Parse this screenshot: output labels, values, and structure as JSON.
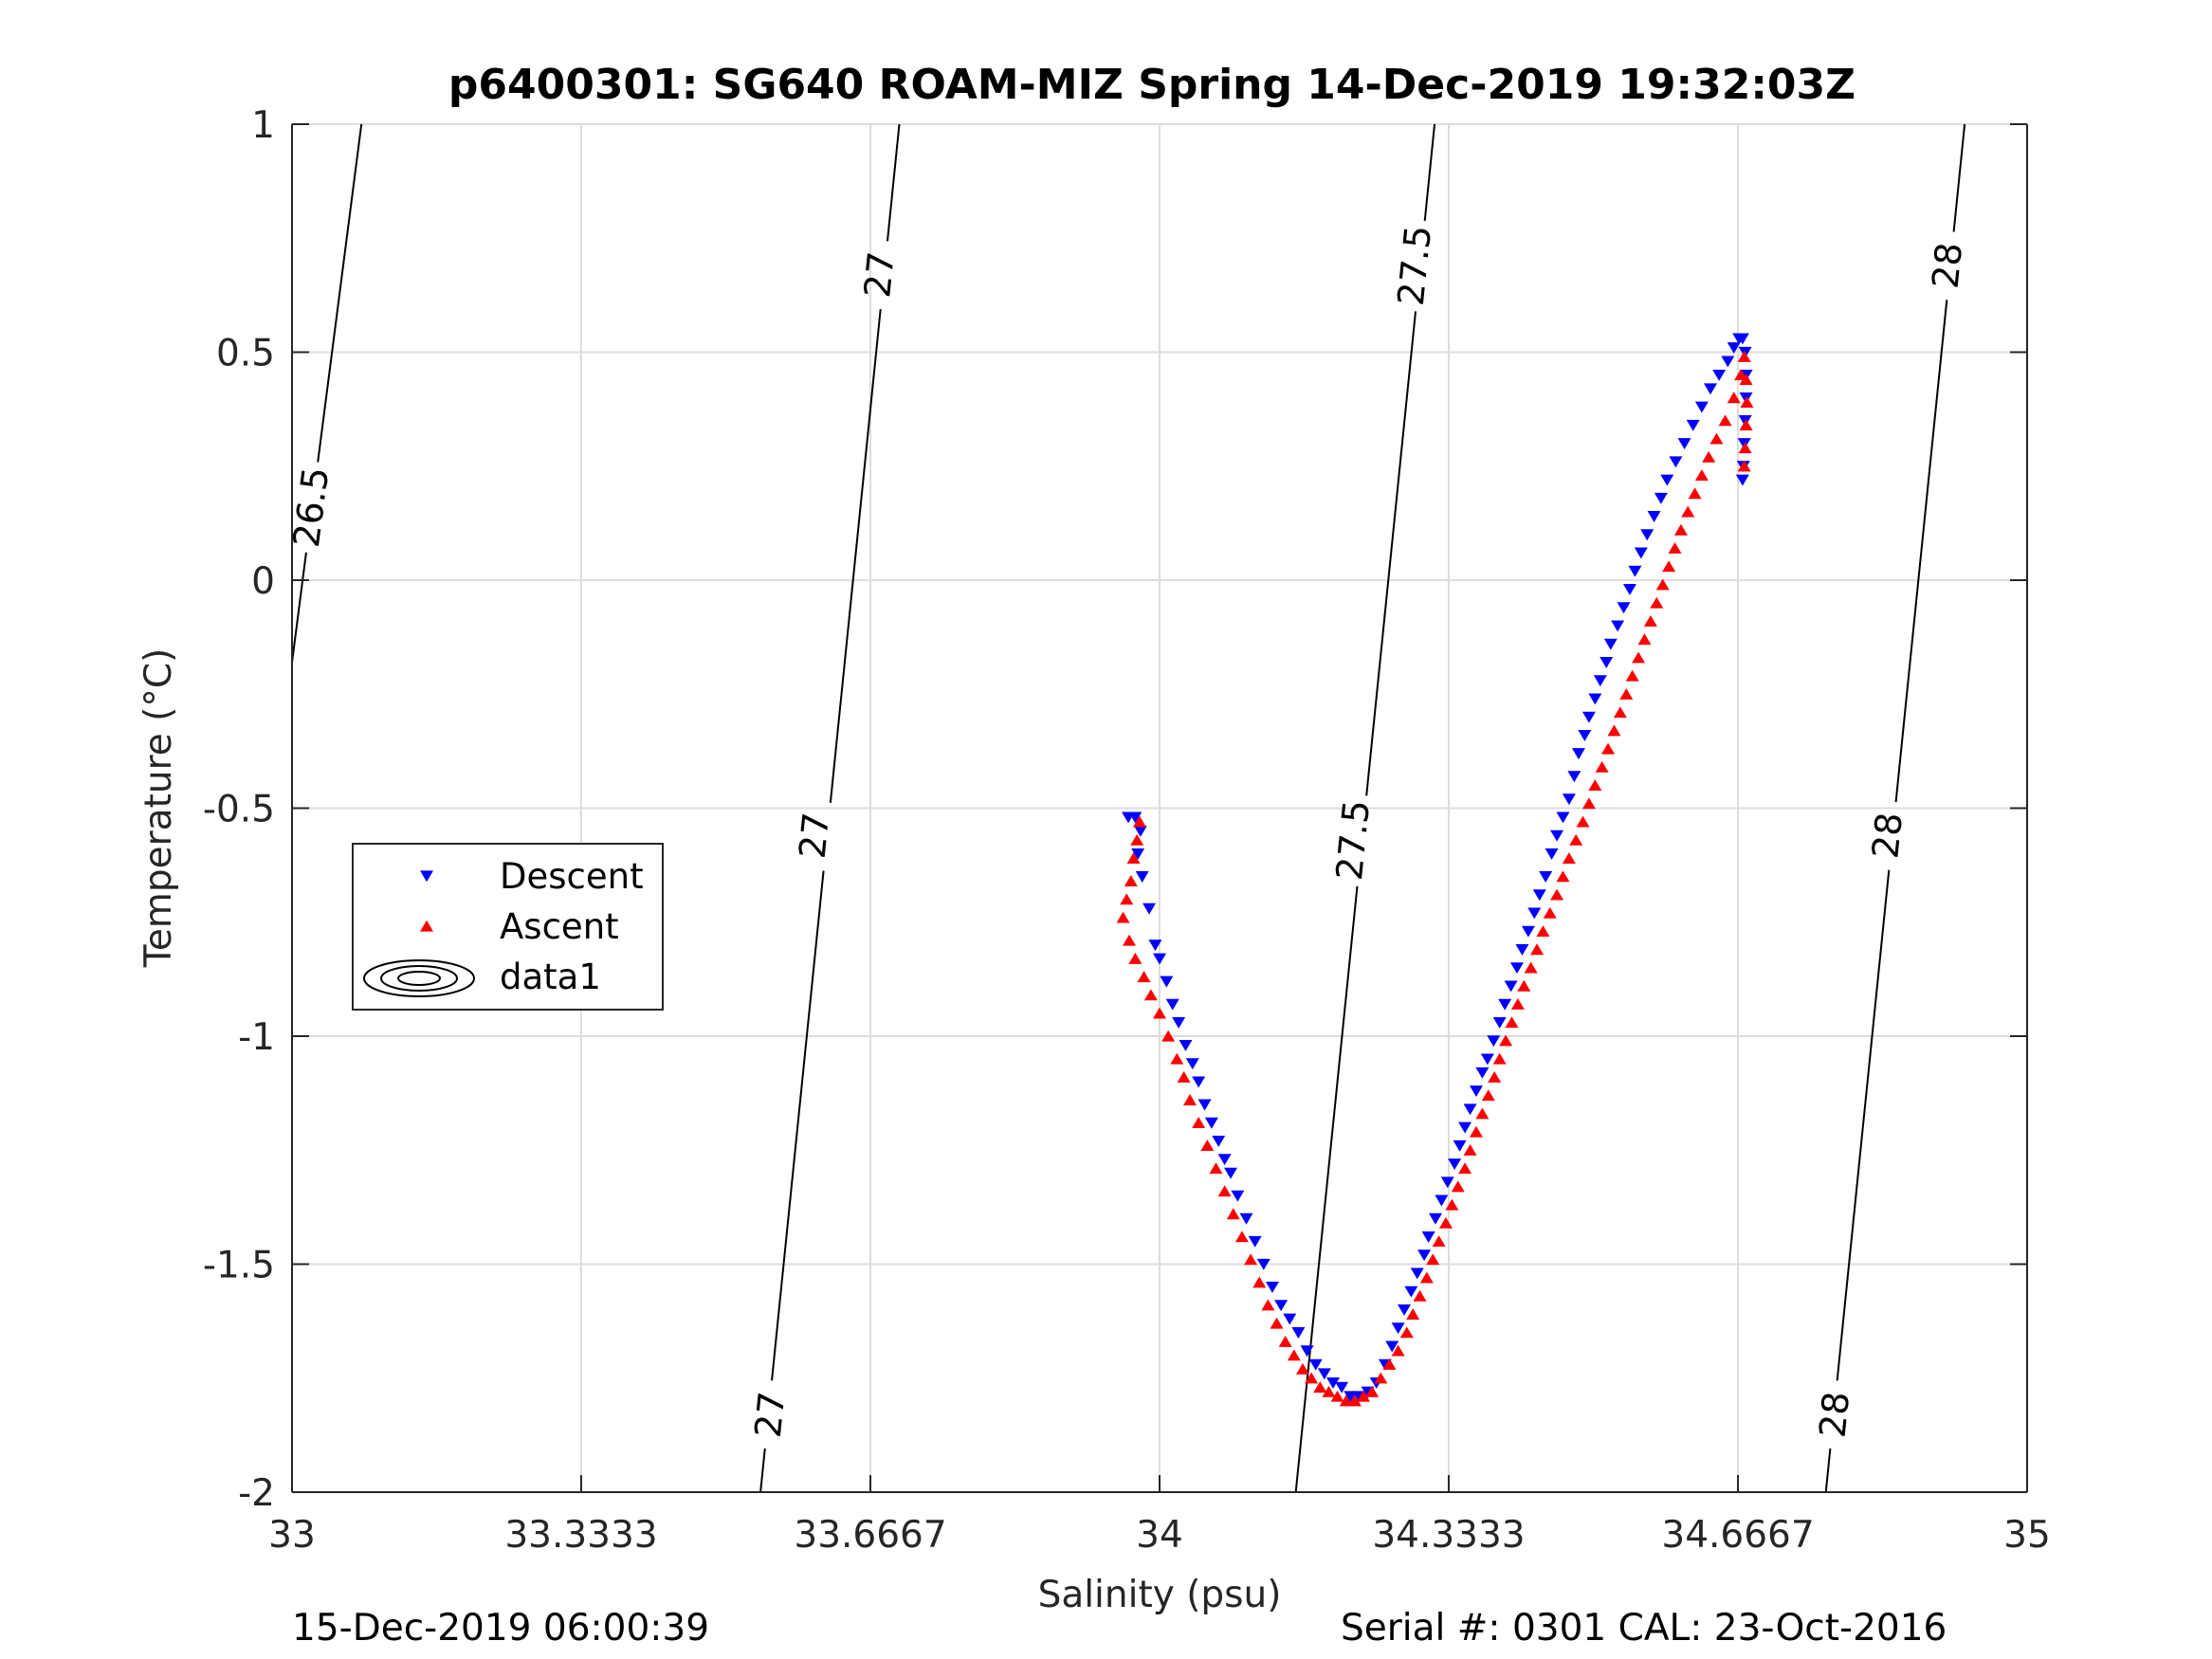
{
  "chart_data": {
    "type": "scatter",
    "title": "p6400301: SG640 ROAM-MIZ Spring 14-Dec-2019 19:32:03Z",
    "xlabel": "Salinity (psu)",
    "ylabel": "Temperature (°C)",
    "xlim": [
      33,
      35
    ],
    "ylim": [
      -2,
      1
    ],
    "xticks": [
      33,
      33.3333,
      33.6667,
      34,
      34.3333,
      34.6667,
      35
    ],
    "xtick_labels": [
      "33",
      "33.3333",
      "33.6667",
      "34",
      "34.3333",
      "34.6667",
      "35"
    ],
    "yticks": [
      -2,
      -1.5,
      -1,
      -0.5,
      0,
      0.5,
      1
    ],
    "ytick_labels": [
      "-2",
      "-1.5",
      "-1",
      "-0.5",
      "0",
      "0.5",
      "1"
    ],
    "grid": true,
    "legend_position": "left-middle",
    "contours": [
      {
        "level": "26.5",
        "points": [
          [
            33.0,
            -0.18
          ],
          [
            33.08,
            1.0
          ]
        ],
        "label_at": [
          [
            33.022,
            0.16
          ]
        ]
      },
      {
        "level": "27",
        "points": [
          [
            33.54,
            -2.0
          ],
          [
            33.7,
            1.0
          ]
        ],
        "label_at": [
          [
            33.551,
            -1.83
          ],
          [
            33.602,
            -0.56
          ],
          [
            33.677,
            0.67
          ]
        ]
      },
      {
        "level": "27.5",
        "points": [
          [
            34.157,
            -2.0
          ],
          [
            34.317,
            1.0
          ]
        ],
        "label_at": [
          [
            34.223,
            -0.57
          ],
          [
            34.294,
            0.69
          ]
        ]
      },
      {
        "level": "28",
        "points": [
          [
            34.768,
            -2.0
          ],
          [
            34.928,
            1.0
          ]
        ],
        "label_at": [
          [
            34.778,
            -1.83
          ],
          [
            34.839,
            -0.56
          ],
          [
            34.908,
            0.69
          ]
        ]
      }
    ],
    "series": [
      {
        "name": "Descent",
        "color": "#0000ff",
        "marker": "triangle-down",
        "points": [
          [
            33.964,
            -0.52
          ],
          [
            33.972,
            -0.52
          ],
          [
            33.978,
            -0.55
          ],
          [
            33.975,
            -0.6
          ],
          [
            33.98,
            -0.65
          ],
          [
            33.988,
            -0.72
          ],
          [
            33.995,
            -0.8
          ],
          [
            34.0,
            -0.83
          ],
          [
            34.008,
            -0.88
          ],
          [
            34.015,
            -0.93
          ],
          [
            34.022,
            -0.97
          ],
          [
            34.03,
            -1.02
          ],
          [
            34.038,
            -1.06
          ],
          [
            34.045,
            -1.1
          ],
          [
            34.052,
            -1.15
          ],
          [
            34.06,
            -1.19
          ],
          [
            34.068,
            -1.23
          ],
          [
            34.075,
            -1.27
          ],
          [
            34.082,
            -1.3
          ],
          [
            34.09,
            -1.35
          ],
          [
            34.1,
            -1.4
          ],
          [
            34.11,
            -1.45
          ],
          [
            34.12,
            -1.5
          ],
          [
            34.13,
            -1.55
          ],
          [
            34.14,
            -1.59
          ],
          [
            34.15,
            -1.62
          ],
          [
            34.16,
            -1.65
          ],
          [
            34.17,
            -1.69
          ],
          [
            34.18,
            -1.72
          ],
          [
            34.19,
            -1.74
          ],
          [
            34.2,
            -1.76
          ],
          [
            34.21,
            -1.77
          ],
          [
            34.22,
            -1.79
          ],
          [
            34.23,
            -1.79
          ],
          [
            34.24,
            -1.78
          ],
          [
            34.25,
            -1.76
          ],
          [
            34.26,
            -1.72
          ],
          [
            34.268,
            -1.68
          ],
          [
            34.275,
            -1.64
          ],
          [
            34.282,
            -1.6
          ],
          [
            34.29,
            -1.56
          ],
          [
            34.297,
            -1.52
          ],
          [
            34.305,
            -1.48
          ],
          [
            34.31,
            -1.44
          ],
          [
            34.318,
            -1.4
          ],
          [
            34.325,
            -1.36
          ],
          [
            34.332,
            -1.32
          ],
          [
            34.34,
            -1.28
          ],
          [
            34.346,
            -1.24
          ],
          [
            34.352,
            -1.2
          ],
          [
            34.358,
            -1.16
          ],
          [
            34.365,
            -1.12
          ],
          [
            34.372,
            -1.08
          ],
          [
            34.378,
            -1.05
          ],
          [
            34.385,
            -1.01
          ],
          [
            34.392,
            -0.97
          ],
          [
            34.398,
            -0.93
          ],
          [
            34.405,
            -0.89
          ],
          [
            34.412,
            -0.85
          ],
          [
            34.418,
            -0.81
          ],
          [
            34.425,
            -0.77
          ],
          [
            34.432,
            -0.73
          ],
          [
            34.438,
            -0.69
          ],
          [
            34.445,
            -0.65
          ],
          [
            34.452,
            -0.6
          ],
          [
            34.458,
            -0.56
          ],
          [
            34.465,
            -0.52
          ],
          [
            34.472,
            -0.48
          ],
          [
            34.478,
            -0.43
          ],
          [
            34.483,
            -0.38
          ],
          [
            34.49,
            -0.34
          ],
          [
            34.495,
            -0.3
          ],
          [
            34.502,
            -0.26
          ],
          [
            34.508,
            -0.22
          ],
          [
            34.515,
            -0.18
          ],
          [
            34.52,
            -0.14
          ],
          [
            34.528,
            -0.1
          ],
          [
            34.535,
            -0.06
          ],
          [
            34.542,
            -0.02
          ],
          [
            34.548,
            0.02
          ],
          [
            34.555,
            0.06
          ],
          [
            34.562,
            0.1
          ],
          [
            34.57,
            0.14
          ],
          [
            34.578,
            0.18
          ],
          [
            34.585,
            0.22
          ],
          [
            34.595,
            0.26
          ],
          [
            34.605,
            0.3
          ],
          [
            34.615,
            0.34
          ],
          [
            34.625,
            0.38
          ],
          [
            34.635,
            0.42
          ],
          [
            34.645,
            0.45
          ],
          [
            34.655,
            0.48
          ],
          [
            34.662,
            0.51
          ],
          [
            34.668,
            0.53
          ],
          [
            34.672,
            0.53
          ],
          [
            34.675,
            0.5
          ],
          [
            34.676,
            0.45
          ],
          [
            34.676,
            0.4
          ],
          [
            34.675,
            0.35
          ],
          [
            34.674,
            0.3
          ],
          [
            34.673,
            0.25
          ],
          [
            34.672,
            0.22
          ]
        ]
      },
      {
        "name": "Ascent",
        "color": "#ff0000",
        "marker": "triangle-up",
        "points": [
          [
            33.977,
            -0.53
          ],
          [
            33.974,
            -0.57
          ],
          [
            33.97,
            -0.61
          ],
          [
            33.967,
            -0.66
          ],
          [
            33.962,
            -0.7
          ],
          [
            33.958,
            -0.74
          ],
          [
            33.965,
            -0.79
          ],
          [
            33.972,
            -0.83
          ],
          [
            33.982,
            -0.87
          ],
          [
            33.99,
            -0.91
          ],
          [
            34.0,
            -0.95
          ],
          [
            34.01,
            -1.0
          ],
          [
            34.02,
            -1.05
          ],
          [
            34.028,
            -1.09
          ],
          [
            34.035,
            -1.14
          ],
          [
            34.045,
            -1.19
          ],
          [
            34.055,
            -1.24
          ],
          [
            34.065,
            -1.29
          ],
          [
            34.075,
            -1.34
          ],
          [
            34.085,
            -1.39
          ],
          [
            34.095,
            -1.44
          ],
          [
            34.105,
            -1.49
          ],
          [
            34.115,
            -1.54
          ],
          [
            34.125,
            -1.59
          ],
          [
            34.135,
            -1.63
          ],
          [
            34.145,
            -1.67
          ],
          [
            34.155,
            -1.7
          ],
          [
            34.165,
            -1.73
          ],
          [
            34.175,
            -1.75
          ],
          [
            34.185,
            -1.77
          ],
          [
            34.195,
            -1.78
          ],
          [
            34.205,
            -1.79
          ],
          [
            34.215,
            -1.8
          ],
          [
            34.225,
            -1.8
          ],
          [
            34.235,
            -1.79
          ],
          [
            34.245,
            -1.78
          ],
          [
            34.255,
            -1.75
          ],
          [
            34.265,
            -1.72
          ],
          [
            34.275,
            -1.69
          ],
          [
            34.285,
            -1.65
          ],
          [
            34.292,
            -1.61
          ],
          [
            34.3,
            -1.57
          ],
          [
            34.308,
            -1.53
          ],
          [
            34.315,
            -1.49
          ],
          [
            34.322,
            -1.45
          ],
          [
            34.33,
            -1.41
          ],
          [
            34.337,
            -1.37
          ],
          [
            34.344,
            -1.33
          ],
          [
            34.352,
            -1.29
          ],
          [
            34.358,
            -1.25
          ],
          [
            34.365,
            -1.21
          ],
          [
            34.372,
            -1.17
          ],
          [
            34.379,
            -1.13
          ],
          [
            34.386,
            -1.09
          ],
          [
            34.392,
            -1.05
          ],
          [
            34.399,
            -1.01
          ],
          [
            34.406,
            -0.97
          ],
          [
            34.413,
            -0.93
          ],
          [
            34.42,
            -0.89
          ],
          [
            34.428,
            -0.85
          ],
          [
            34.435,
            -0.81
          ],
          [
            34.442,
            -0.77
          ],
          [
            34.45,
            -0.73
          ],
          [
            34.458,
            -0.69
          ],
          [
            34.465,
            -0.65
          ],
          [
            34.472,
            -0.61
          ],
          [
            34.48,
            -0.57
          ],
          [
            34.488,
            -0.53
          ],
          [
            34.495,
            -0.49
          ],
          [
            34.502,
            -0.45
          ],
          [
            34.51,
            -0.41
          ],
          [
            34.517,
            -0.37
          ],
          [
            34.524,
            -0.33
          ],
          [
            34.531,
            -0.29
          ],
          [
            34.538,
            -0.25
          ],
          [
            34.545,
            -0.21
          ],
          [
            34.552,
            -0.17
          ],
          [
            34.559,
            -0.13
          ],
          [
            34.566,
            -0.09
          ],
          [
            34.573,
            -0.05
          ],
          [
            34.58,
            -0.01
          ],
          [
            34.587,
            0.03
          ],
          [
            34.594,
            0.07
          ],
          [
            34.601,
            0.11
          ],
          [
            34.609,
            0.15
          ],
          [
            34.617,
            0.19
          ],
          [
            34.625,
            0.23
          ],
          [
            34.633,
            0.27
          ],
          [
            34.642,
            0.31
          ],
          [
            34.652,
            0.35
          ],
          [
            34.662,
            0.4
          ],
          [
            34.67,
            0.45
          ],
          [
            34.674,
            0.49
          ],
          [
            34.676,
            0.44
          ],
          [
            34.677,
            0.39
          ],
          [
            34.676,
            0.34
          ],
          [
            34.675,
            0.29
          ],
          [
            34.674,
            0.25
          ]
        ]
      }
    ],
    "legend": [
      {
        "label": "Descent",
        "marker": "triangle-down",
        "color": "#0000ff"
      },
      {
        "label": "Ascent",
        "marker": "triangle-up",
        "color": "#ff0000"
      },
      {
        "label": "data1",
        "marker": "contour",
        "color": "#000000"
      }
    ]
  },
  "footer": {
    "left": "15-Dec-2019 06:00:39",
    "right": "Serial #: 0301  CAL: 23-Oct-2016"
  }
}
